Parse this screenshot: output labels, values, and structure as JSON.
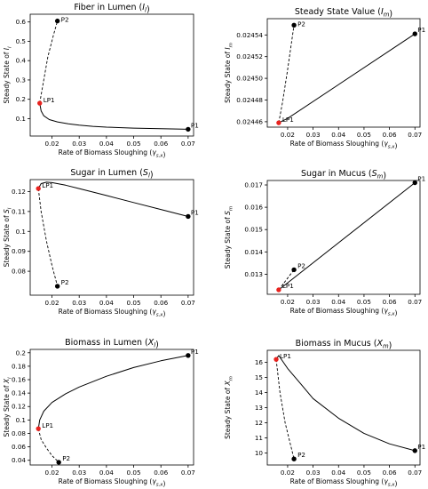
{
  "chart_data": [
    {
      "type": "line",
      "title": "Fiber in Lumen (I_l)",
      "xlabel": "Rate of Biomass Sloughing (γ_{s,x})",
      "ylabel": "Steady State of I_l",
      "xlim": [
        0.012,
        0.072
      ],
      "ylim": [
        0.01,
        0.64
      ],
      "xticks": [
        0.02,
        0.03,
        0.04,
        0.05,
        0.06,
        0.07
      ],
      "yticks": [
        0.1,
        0.2,
        0.3,
        0.4,
        0.5,
        0.6
      ],
      "series": [
        {
          "style": "dashed",
          "x": [
            0.0155,
            0.017,
            0.0185,
            0.0205,
            0.022
          ],
          "y": [
            0.18,
            0.3,
            0.42,
            0.53,
            0.605
          ]
        },
        {
          "style": "solid",
          "x": [
            0.0155,
            0.016,
            0.017,
            0.019,
            0.022,
            0.026,
            0.03,
            0.035,
            0.04,
            0.05,
            0.06,
            0.07
          ],
          "y": [
            0.18,
            0.14,
            0.115,
            0.095,
            0.083,
            0.073,
            0.066,
            0.06,
            0.056,
            0.051,
            0.048,
            0.045
          ]
        }
      ],
      "points": [
        {
          "label": "P2",
          "x": 0.022,
          "y": 0.605,
          "color": "#000000"
        },
        {
          "label": "LP1",
          "x": 0.0155,
          "y": 0.18,
          "color": "#e8231f"
        },
        {
          "label": "P1",
          "x": 0.07,
          "y": 0.045,
          "color": "#000000"
        }
      ]
    },
    {
      "type": "line",
      "title": "Steady State Value (I_m)",
      "xlabel": "Rate of Biomass Sloughing (γ_{s,x})",
      "ylabel": "Steady State of I_m",
      "xlim": [
        0.012,
        0.072
      ],
      "ylim": [
        0.024455,
        0.024555
      ],
      "xticks": [
        0.02,
        0.03,
        0.04,
        0.05,
        0.06,
        0.07
      ],
      "yticks": [
        0.02446,
        0.02448,
        0.0245,
        0.02452,
        0.02454
      ],
      "ytick_labels": [
        "0.02446",
        "0.02448",
        "0.02450",
        "0.02452",
        "0.02454"
      ],
      "series": [
        {
          "style": "dashed",
          "x": [
            0.0165,
            0.018,
            0.02,
            0.0225
          ],
          "y": [
            0.024459,
            0.024478,
            0.024508,
            0.024549
          ]
        },
        {
          "style": "solid",
          "x": [
            0.0165,
            0.02,
            0.07
          ],
          "y": [
            0.024459,
            0.024463,
            0.024541
          ]
        }
      ],
      "points": [
        {
          "label": "P2",
          "x": 0.0225,
          "y": 0.024549,
          "color": "#000000"
        },
        {
          "label": "LP1",
          "x": 0.0165,
          "y": 0.024459,
          "color": "#e8231f"
        },
        {
          "label": "P1",
          "x": 0.07,
          "y": 0.024541,
          "color": "#000000"
        }
      ]
    },
    {
      "type": "line",
      "title": "Sugar in Lumen (S_l)",
      "xlabel": "Rate of Biomass Sloughing (γ_{s,x})",
      "ylabel": "Steady State of S_l",
      "xlim": [
        0.012,
        0.072
      ],
      "ylim": [
        0.068,
        0.126
      ],
      "xticks": [
        0.02,
        0.03,
        0.04,
        0.05,
        0.06,
        0.07
      ],
      "yticks": [
        0.08,
        0.09,
        0.1,
        0.11,
        0.12
      ],
      "series": [
        {
          "style": "dashed",
          "x": [
            0.015,
            0.016,
            0.018,
            0.02,
            0.022
          ],
          "y": [
            0.1215,
            0.11,
            0.095,
            0.083,
            0.0725
          ]
        },
        {
          "style": "solid",
          "x": [
            0.015,
            0.016,
            0.018,
            0.02,
            0.025,
            0.03,
            0.04,
            0.05,
            0.06,
            0.07
          ],
          "y": [
            0.1215,
            0.124,
            0.1247,
            0.1245,
            0.1232,
            0.1215,
            0.118,
            0.1145,
            0.111,
            0.1075
          ]
        }
      ],
      "points": [
        {
          "label": "LP1",
          "x": 0.015,
          "y": 0.1215,
          "color": "#e8231f"
        },
        {
          "label": "P2",
          "x": 0.022,
          "y": 0.0725,
          "color": "#000000"
        },
        {
          "label": "P1",
          "x": 0.07,
          "y": 0.1075,
          "color": "#000000"
        }
      ]
    },
    {
      "type": "line",
      "title": "Sugar in Mucus (S_m)",
      "xlabel": "Rate of Biomass Sloughing (γ_{s,x})",
      "ylabel": "Steady State of S_m",
      "xlim": [
        0.012,
        0.072
      ],
      "ylim": [
        0.0121,
        0.0172
      ],
      "xticks": [
        0.02,
        0.03,
        0.04,
        0.05,
        0.06,
        0.07
      ],
      "yticks": [
        0.013,
        0.014,
        0.015,
        0.016,
        0.017
      ],
      "series": [
        {
          "style": "dashed",
          "x": [
            0.0165,
            0.0225
          ],
          "y": [
            0.0123,
            0.0132
          ]
        },
        {
          "style": "solid",
          "x": [
            0.0165,
            0.07
          ],
          "y": [
            0.0123,
            0.0171
          ]
        }
      ],
      "points": [
        {
          "label": "P2",
          "x": 0.0225,
          "y": 0.0132,
          "color": "#000000"
        },
        {
          "label": "LP1",
          "x": 0.0165,
          "y": 0.0123,
          "color": "#e8231f"
        },
        {
          "label": "P1",
          "x": 0.07,
          "y": 0.0171,
          "color": "#000000"
        }
      ]
    },
    {
      "type": "line",
      "title": "Biomass in Lumen (X_l)",
      "xlabel": "Rate of Biomass Sloughing (γ_{s,x})",
      "ylabel": "Steady State of X_l",
      "xlim": [
        0.012,
        0.072
      ],
      "ylim": [
        0.033,
        0.205
      ],
      "xticks": [
        0.02,
        0.03,
        0.04,
        0.05,
        0.06,
        0.07
      ],
      "yticks": [
        0.04,
        0.06,
        0.08,
        0.1,
        0.12,
        0.14,
        0.16,
        0.18,
        0.2
      ],
      "series": [
        {
          "style": "dashed",
          "x": [
            0.015,
            0.016,
            0.018,
            0.02,
            0.0225
          ],
          "y": [
            0.087,
            0.071,
            0.058,
            0.047,
            0.037
          ]
        },
        {
          "style": "solid",
          "x": [
            0.015,
            0.0155,
            0.017,
            0.02,
            0.025,
            0.03,
            0.04,
            0.05,
            0.06,
            0.07
          ],
          "y": [
            0.087,
            0.1,
            0.113,
            0.126,
            0.139,
            0.149,
            0.165,
            0.178,
            0.188,
            0.196
          ]
        }
      ],
      "points": [
        {
          "label": "LP1",
          "x": 0.015,
          "y": 0.087,
          "color": "#e8231f"
        },
        {
          "label": "P2",
          "x": 0.0225,
          "y": 0.037,
          "color": "#000000"
        },
        {
          "label": "P1",
          "x": 0.07,
          "y": 0.196,
          "color": "#000000"
        }
      ]
    },
    {
      "type": "line",
      "title": "Biomass in Mucus (X_m)",
      "xlabel": "Rate of Biomass Sloughing (γ_{s,x})",
      "ylabel": "Steady State of X_m",
      "xlim": [
        0.012,
        0.072
      ],
      "ylim": [
        9.2,
        16.8
      ],
      "xticks": [
        0.02,
        0.03,
        0.04,
        0.05,
        0.06,
        0.07
      ],
      "yticks": [
        10,
        11,
        12,
        13,
        14,
        15,
        16
      ],
      "series": [
        {
          "style": "dashed",
          "x": [
            0.0155,
            0.017,
            0.019,
            0.0225
          ],
          "y": [
            16.2,
            14.0,
            12.0,
            9.6
          ]
        },
        {
          "style": "solid",
          "x": [
            0.0155,
            0.0165,
            0.02,
            0.025,
            0.03,
            0.04,
            0.05,
            0.06,
            0.07
          ],
          "y": [
            16.2,
            16.45,
            15.6,
            14.6,
            13.6,
            12.3,
            11.3,
            10.6,
            10.15
          ]
        }
      ],
      "points": [
        {
          "label": "LP1",
          "x": 0.0155,
          "y": 16.2,
          "color": "#e8231f"
        },
        {
          "label": "P2",
          "x": 0.0225,
          "y": 9.6,
          "color": "#000000"
        },
        {
          "label": "P1",
          "x": 0.07,
          "y": 10.15,
          "color": "#000000"
        }
      ]
    }
  ]
}
